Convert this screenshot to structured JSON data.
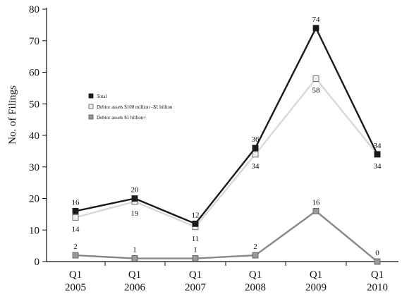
{
  "chart_data": {
    "type": "line",
    "title": "",
    "xlabel": "",
    "ylabel": "No. of Filings",
    "ylim": [
      0,
      80
    ],
    "yticks": [
      "0",
      "10",
      "20",
      "30",
      "40",
      "50",
      "60",
      "70",
      "80"
    ],
    "categories": [
      {
        "line1": "Q1",
        "line2": "2005"
      },
      {
        "line1": "Q1",
        "line2": "2006"
      },
      {
        "line1": "Q1",
        "line2": "2007"
      },
      {
        "line1": "Q1",
        "line2": "2008"
      },
      {
        "line1": "Q1",
        "line2": "2009"
      },
      {
        "line1": "Q1",
        "line2": "2010"
      }
    ],
    "grid": false,
    "legend_position": "center-left",
    "series": [
      {
        "name": "Total",
        "color": "#1a1a1a",
        "marker_fill": "#1a1a1a",
        "marker_stroke": "#1a1a1a",
        "values": [
          16,
          20,
          12,
          36,
          74,
          34
        ],
        "labels": [
          "16",
          "20",
          "12",
          "36",
          "74",
          "34"
        ],
        "label_placement": "above"
      },
      {
        "name": "Debtor assets $100 million –$1 billion",
        "color": "#d8d8d8",
        "marker_fill": "#eeeeee",
        "marker_stroke": "#555555",
        "values": [
          14,
          19,
          11,
          34,
          58,
          34
        ],
        "labels": [
          "14",
          "19",
          "11",
          "34",
          "58",
          "34"
        ],
        "label_placement": "below"
      },
      {
        "name": "Debtor assets $1 billion+",
        "color": "#888888",
        "marker_fill": "#999999",
        "marker_stroke": "#555555",
        "values": [
          2,
          1,
          1,
          2,
          16,
          0
        ],
        "labels": [
          "2",
          "1",
          "1",
          "2",
          "16",
          "0"
        ],
        "label_placement": "above"
      }
    ]
  }
}
